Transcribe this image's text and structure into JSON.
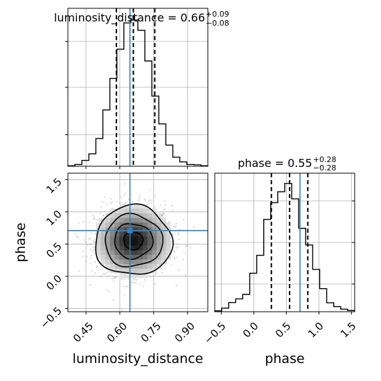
{
  "chart_data": {
    "type": "corner",
    "parameters": [
      "luminosity_distance",
      "phase"
    ],
    "truth": {
      "luminosity_distance": 0.645,
      "phase": 0.71
    },
    "colors": {
      "truth": "#3d7db6",
      "histogram": "#000000",
      "samples": "#7a7a7a"
    },
    "grid": true,
    "panels": {
      "luminosity_distance_marginal": {
        "title": {
          "main": "luminosity_distance = 0.66",
          "sup": "+0.09",
          "sub": "−0.08"
        },
        "xlim": [
          0.37,
          0.99
        ],
        "quantiles": [
          0.585,
          0.66,
          0.755
        ],
        "bin_edges": [
          0.37,
          0.401,
          0.432,
          0.463,
          0.494,
          0.525,
          0.556,
          0.587,
          0.618,
          0.649,
          0.68,
          0.711,
          0.742,
          0.773,
          0.804,
          0.835,
          0.866,
          0.897,
          0.928,
          0.959,
          0.99
        ],
        "density": [
          0.003,
          0.012,
          0.04,
          0.085,
          0.19,
          0.385,
          0.6,
          0.8,
          0.98,
          1.0,
          0.93,
          0.72,
          0.48,
          0.29,
          0.145,
          0.062,
          0.03,
          0.012,
          0.01,
          0.003
        ]
      },
      "phase_marginal": {
        "title": {
          "main": "phase = 0.55",
          "sup": "+0.28",
          "sub": "−0.28"
        },
        "xlim": [
          -0.6,
          1.55
        ],
        "quantiles": [
          0.27,
          0.55,
          0.83
        ],
        "bin_edges": [
          -0.6,
          -0.4925,
          -0.385,
          -0.2775,
          -0.17,
          -0.0625,
          0.045,
          0.1525,
          0.26,
          0.3675,
          0.475,
          0.5825,
          0.69,
          0.7975,
          0.905,
          1.0125,
          1.12,
          1.2275,
          1.335,
          1.4425,
          1.55
        ],
        "density": [
          0.007,
          0.028,
          0.072,
          0.1,
          0.135,
          0.3,
          0.44,
          0.72,
          0.85,
          0.935,
          1.0,
          0.88,
          0.65,
          0.52,
          0.33,
          0.18,
          0.07,
          0.04,
          0.02,
          0.01
        ],
        "xticks": [
          {
            "value": -0.5,
            "label": "−0.5"
          },
          {
            "value": 0.0,
            "label": "0.0"
          },
          {
            "value": 0.5,
            "label": "0.5"
          },
          {
            "value": 1.0,
            "label": "1.0"
          },
          {
            "value": 1.5,
            "label": "1.5"
          }
        ]
      },
      "joint": {
        "xlim": [
          0.37,
          0.99
        ],
        "ylim": [
          -0.55,
          1.6
        ],
        "center": [
          0.66,
          0.55
        ],
        "std": [
          0.085,
          0.27
        ],
        "contour_levels_sigma": [
          0.5,
          1.0,
          1.5,
          2.0
        ],
        "xticks": [
          {
            "value": 0.45,
            "label": "0.45"
          },
          {
            "value": 0.6,
            "label": "0.60"
          },
          {
            "value": 0.75,
            "label": "0.75"
          },
          {
            "value": 0.9,
            "label": "0.90"
          }
        ],
        "yticks": [
          {
            "value": -0.5,
            "label": "−0.5"
          },
          {
            "value": 0.0,
            "label": "0.0"
          },
          {
            "value": 0.5,
            "label": "0.5"
          },
          {
            "value": 1.0,
            "label": "1.0"
          },
          {
            "value": 1.5,
            "label": "1.5"
          }
        ]
      }
    },
    "axis_labels": {
      "joint_x": "luminosity_distance",
      "joint_y": "phase",
      "phase_x": "phase"
    }
  }
}
